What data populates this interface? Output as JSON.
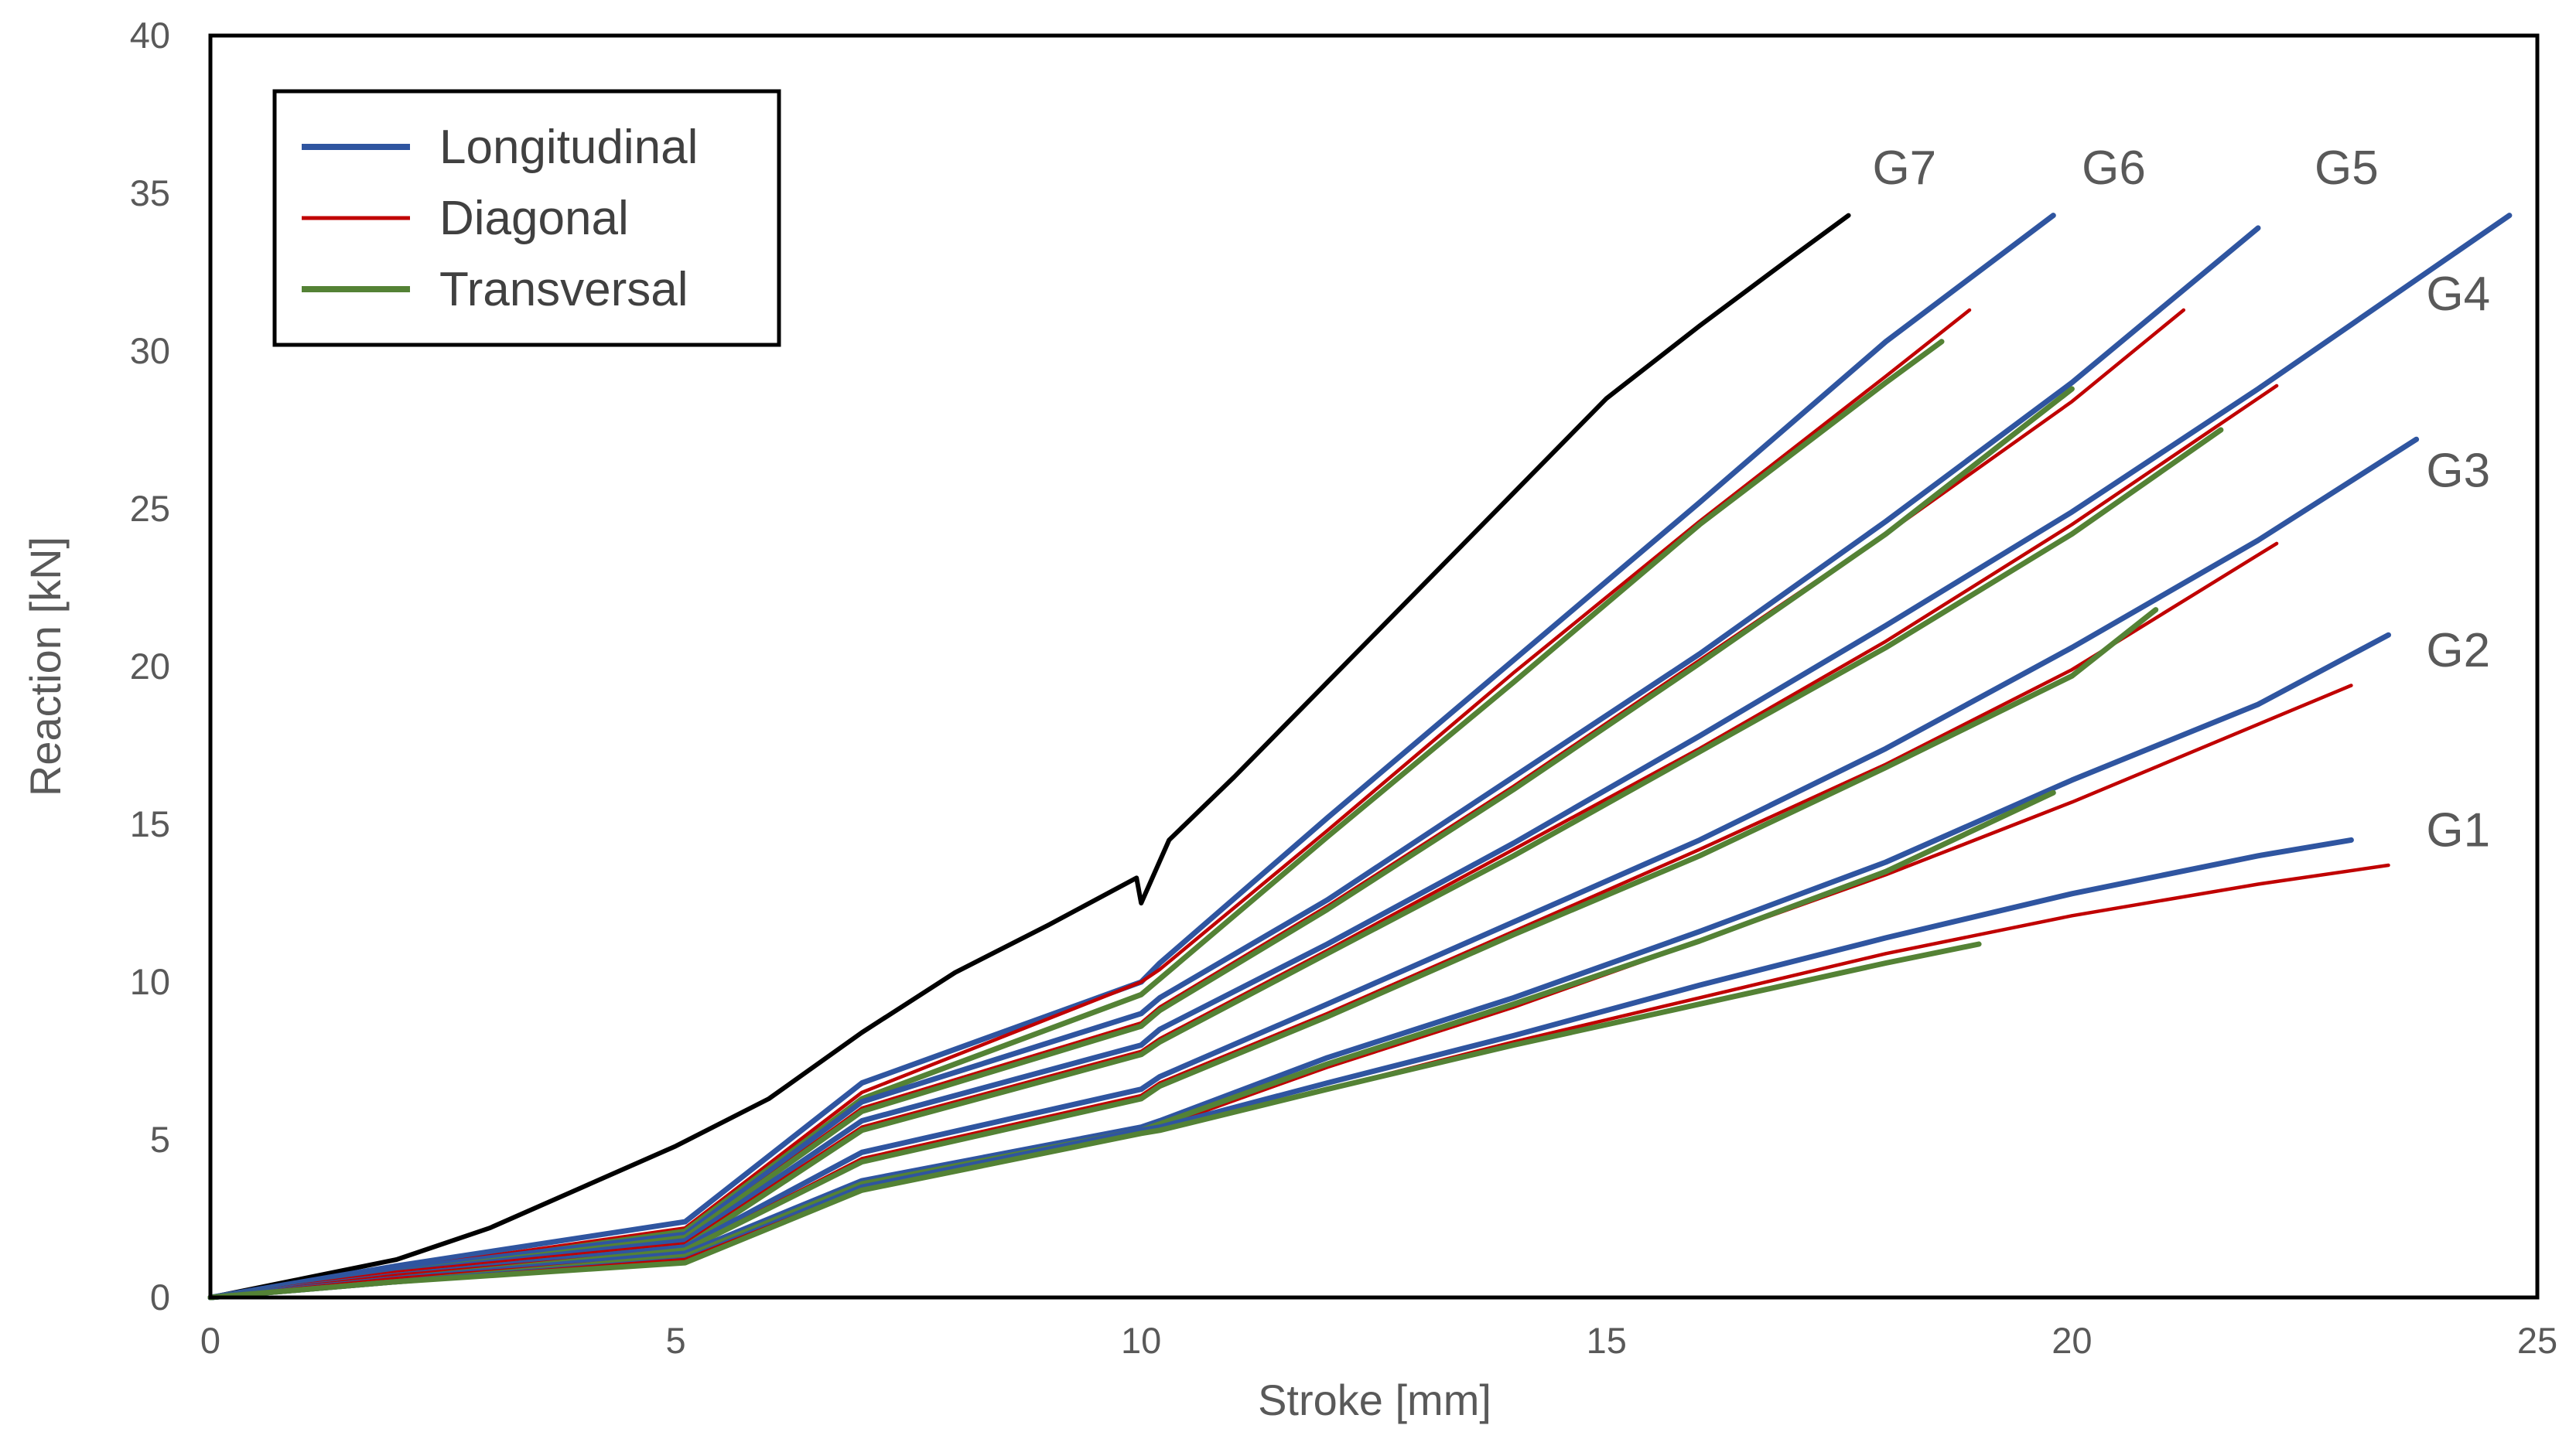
{
  "chart_data": {
    "type": "line",
    "title": "",
    "xlabel": "Stroke [mm]",
    "ylabel": "Reaction [kN]",
    "xlim": [
      0,
      25
    ],
    "ylim": [
      0,
      40
    ],
    "xticks": [
      0,
      5,
      10,
      15,
      20,
      25
    ],
    "yticks": [
      0,
      5,
      10,
      15,
      20,
      25,
      30,
      35,
      40
    ],
    "grid": false,
    "legend_position": "top-left",
    "legend": [
      {
        "name": "Longitudinal",
        "color": "#2F55A0"
      },
      {
        "name": "Diagonal",
        "color": "#C00000"
      },
      {
        "name": "Transversal",
        "color": "#548235"
      }
    ],
    "group_labels": [
      {
        "label": "G7",
        "x": 18.2,
        "y": 35.3
      },
      {
        "label": "G6",
        "x": 20.45,
        "y": 35.3
      },
      {
        "label": "G5",
        "x": 22.95,
        "y": 35.3
      },
      {
        "label": "G4",
        "x": 24.15,
        "y": 31.3
      },
      {
        "label": "G3",
        "x": 24.15,
        "y": 25.7
      },
      {
        "label": "G2",
        "x": 24.15,
        "y": 20.0
      },
      {
        "label": "G1",
        "x": 24.15,
        "y": 14.3
      }
    ],
    "series": [
      {
        "group": "G7",
        "name": "G7",
        "color": "#000000",
        "x": [
          0,
          1,
          2,
          3,
          4,
          5,
          6,
          7,
          8,
          9,
          9.95,
          10.0,
          10.3,
          11,
          12,
          13,
          14,
          15,
          16,
          17,
          17.6
        ],
        "y": [
          0,
          0.6,
          1.2,
          2.2,
          3.5,
          4.8,
          6.3,
          8.4,
          10.3,
          11.8,
          13.3,
          12.5,
          14.5,
          16.5,
          19.5,
          22.5,
          25.5,
          28.5,
          30.8,
          33.0,
          34.3
        ]
      },
      {
        "group": "G6",
        "name": "Longitudinal",
        "color": "#2F55A0",
        "x": [
          0,
          2,
          5.1,
          7,
          10.0,
          10.2,
          12,
          14,
          16,
          18,
          19.8
        ],
        "y": [
          0,
          1.0,
          2.4,
          6.8,
          10.0,
          10.6,
          15.2,
          20.2,
          25.2,
          30.3,
          34.3
        ]
      },
      {
        "group": "G6",
        "name": "Diagonal",
        "color": "#C00000",
        "x": [
          0,
          2,
          5.1,
          7,
          10.0,
          10.2,
          12,
          14,
          16,
          18,
          18.9
        ],
        "y": [
          0,
          0.9,
          2.2,
          6.5,
          10.0,
          10.4,
          14.8,
          19.8,
          24.6,
          29.2,
          31.3
        ]
      },
      {
        "group": "G6",
        "name": "Transversal",
        "color": "#548235",
        "x": [
          0,
          2,
          5.1,
          7,
          10.0,
          10.2,
          12,
          14,
          16,
          18,
          18.6
        ],
        "y": [
          0,
          0.8,
          2.1,
          6.3,
          9.6,
          10.1,
          14.6,
          19.5,
          24.5,
          29.0,
          30.3
        ]
      },
      {
        "group": "G5",
        "name": "Longitudinal",
        "color": "#2F55A0",
        "x": [
          0,
          2,
          5.1,
          7,
          10.0,
          10.2,
          12,
          14,
          16,
          18,
          20,
          22.0
        ],
        "y": [
          0,
          0.9,
          2.0,
          6.2,
          9.0,
          9.5,
          12.6,
          16.5,
          20.4,
          24.6,
          29.0,
          33.9
        ]
      },
      {
        "group": "G5",
        "name": "Diagonal",
        "color": "#C00000",
        "x": [
          0,
          2,
          5.1,
          7,
          10.0,
          10.2,
          12,
          14,
          16,
          18,
          20,
          21.2
        ],
        "y": [
          0,
          0.8,
          1.9,
          6.0,
          8.7,
          9.2,
          12.4,
          16.2,
          20.2,
          24.2,
          28.4,
          31.3
        ]
      },
      {
        "group": "G5",
        "name": "Transversal",
        "color": "#548235",
        "x": [
          0,
          2,
          5.1,
          7,
          10.0,
          10.2,
          12,
          14,
          16,
          18,
          20.0
        ],
        "y": [
          0,
          0.8,
          1.9,
          5.9,
          8.6,
          9.1,
          12.3,
          16.1,
          20.1,
          24.2,
          28.8
        ]
      },
      {
        "group": "G4",
        "name": "Longitudinal",
        "color": "#2F55A0",
        "x": [
          0,
          2,
          5.1,
          7,
          10.0,
          10.2,
          12,
          14,
          16,
          18,
          20,
          22,
          24.7
        ],
        "y": [
          0,
          0.8,
          1.8,
          5.6,
          8.0,
          8.5,
          11.2,
          14.4,
          17.8,
          21.3,
          24.9,
          28.8,
          34.3
        ]
      },
      {
        "group": "G4",
        "name": "Diagonal",
        "color": "#C00000",
        "x": [
          0,
          2,
          5.1,
          7,
          10.0,
          10.2,
          12,
          14,
          16,
          18,
          20,
          22.2
        ],
        "y": [
          0,
          0.8,
          1.7,
          5.4,
          7.8,
          8.2,
          11.0,
          14.2,
          17.4,
          20.8,
          24.5,
          28.9
        ]
      },
      {
        "group": "G4",
        "name": "Transversal",
        "color": "#548235",
        "x": [
          0,
          2,
          5.1,
          7,
          10.0,
          10.2,
          12,
          14,
          16,
          18,
          20,
          21.6
        ],
        "y": [
          0,
          0.7,
          1.6,
          5.3,
          7.7,
          8.1,
          10.9,
          14.0,
          17.3,
          20.6,
          24.2,
          27.5
        ]
      },
      {
        "group": "G3",
        "name": "Longitudinal",
        "color": "#2F55A0",
        "x": [
          0,
          2,
          5.1,
          7,
          10.0,
          10.2,
          12,
          14,
          16,
          18,
          20,
          22,
          23.7
        ],
        "y": [
          0,
          0.7,
          1.6,
          4.6,
          6.6,
          7.0,
          9.3,
          11.9,
          14.5,
          17.4,
          20.6,
          24.0,
          27.2
        ]
      },
      {
        "group": "G3",
        "name": "Diagonal",
        "color": "#C00000",
        "x": [
          0,
          2,
          5.1,
          7,
          10.0,
          10.2,
          12,
          14,
          16,
          18,
          20,
          22.2
        ],
        "y": [
          0,
          0.7,
          1.5,
          4.4,
          6.4,
          6.8,
          9.0,
          11.6,
          14.2,
          16.9,
          19.9,
          23.9
        ]
      },
      {
        "group": "G3",
        "name": "Transversal",
        "color": "#548235",
        "x": [
          0,
          2,
          5.1,
          7,
          10.0,
          10.2,
          12,
          14,
          16,
          18,
          20,
          20.9
        ],
        "y": [
          0,
          0.6,
          1.5,
          4.3,
          6.3,
          6.7,
          8.9,
          11.5,
          14.0,
          16.8,
          19.7,
          21.8
        ]
      },
      {
        "group": "G2",
        "name": "Longitudinal",
        "color": "#2F55A0",
        "x": [
          0,
          2,
          5.1,
          7,
          10.0,
          10.2,
          12,
          14,
          16,
          18,
          20,
          22,
          23.4
        ],
        "y": [
          0,
          0.6,
          1.4,
          3.7,
          5.4,
          5.6,
          7.6,
          9.5,
          11.6,
          13.8,
          16.4,
          18.8,
          21.0
        ]
      },
      {
        "group": "G2",
        "name": "Diagonal",
        "color": "#C00000",
        "x": [
          0,
          2,
          5.1,
          7,
          10.0,
          10.2,
          12,
          14,
          16,
          18,
          20,
          23.0
        ],
        "y": [
          0,
          0.6,
          1.3,
          3.5,
          5.2,
          5.4,
          7.3,
          9.2,
          11.3,
          13.4,
          15.7,
          19.4
        ]
      },
      {
        "group": "G2",
        "name": "Transversal",
        "color": "#548235",
        "x": [
          0,
          2,
          5.1,
          7,
          10.0,
          10.2,
          12,
          14,
          16,
          18,
          19.8
        ],
        "y": [
          0,
          0.5,
          1.3,
          3.6,
          5.3,
          5.5,
          7.4,
          9.3,
          11.3,
          13.5,
          16.0
        ]
      },
      {
        "group": "G1",
        "name": "Longitudinal",
        "color": "#2F55A0",
        "x": [
          0,
          2,
          5.1,
          7,
          10.0,
          10.2,
          12,
          14,
          16,
          18,
          20,
          22,
          23.0
        ],
        "y": [
          0,
          0.5,
          1.2,
          3.5,
          5.3,
          5.4,
          6.8,
          8.3,
          9.9,
          11.4,
          12.8,
          14.0,
          14.5
        ]
      },
      {
        "group": "G1",
        "name": "Diagonal",
        "color": "#C00000",
        "x": [
          0,
          2,
          5.1,
          7,
          10.0,
          10.2,
          12,
          14,
          16,
          18,
          20,
          22,
          23.4
        ],
        "y": [
          0,
          0.5,
          1.2,
          3.4,
          5.2,
          5.3,
          6.6,
          8.1,
          9.5,
          10.9,
          12.1,
          13.1,
          13.7
        ]
      },
      {
        "group": "G1",
        "name": "Transversal",
        "color": "#548235",
        "x": [
          0,
          2,
          5.1,
          7,
          10.0,
          10.2,
          12,
          14,
          16,
          18,
          19.0
        ],
        "y": [
          0,
          0.5,
          1.1,
          3.4,
          5.2,
          5.3,
          6.6,
          8.0,
          9.3,
          10.6,
          11.2
        ]
      }
    ]
  }
}
